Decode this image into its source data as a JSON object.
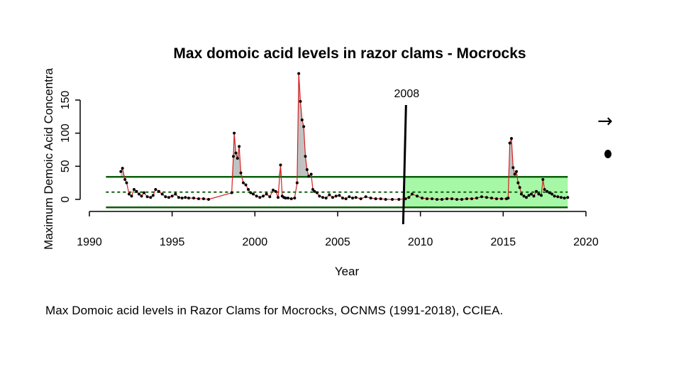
{
  "chart_data": {
    "type": "line",
    "title": "Max domoic acid levels in razor clams - Mocrocks",
    "xlabel": "Year",
    "ylabel": "Maximum Demoic Acid Concentra",
    "xlim": [
      1990,
      2021.5
    ],
    "ylim": [
      -12,
      150
    ],
    "x_ticks": [
      "1990",
      "1995",
      "2000",
      "2005",
      "2010",
      "2015",
      "2020"
    ],
    "y_ticks": [
      "0",
      "50",
      "100",
      "150"
    ],
    "mean": 11,
    "upper_band": 34,
    "lower_band": -12,
    "recent_period_start": 2009.0,
    "recent_period_end": 2018.9,
    "recent_period_color": "#a6f7a6",
    "band_color": "#0b5e0b",
    "line_color": "#d62020",
    "fill_color": "#c0c0c0",
    "vline_label": "2008",
    "series": [
      {
        "x": [
          1991.9,
          1992.0,
          1992.15,
          1992.25,
          1992.4,
          1992.55,
          1992.7,
          1992.85,
          1993.0,
          1993.15,
          1993.3,
          1993.5,
          1993.7,
          1993.85,
          1994.0,
          1994.2,
          1994.4,
          1994.6,
          1994.8,
          1995.0,
          1995.2,
          1995.4,
          1995.6,
          1995.8,
          1996.0,
          1996.3,
          1996.6,
          1996.9,
          1997.2,
          1998.6,
          1998.7,
          1998.75,
          1998.85,
          1998.95,
          1999.05,
          1999.15,
          1999.3,
          1999.45,
          1999.6,
          1999.75,
          1999.9,
          2000.1,
          2000.3,
          2000.5,
          2000.7,
          2000.9,
          2001.1,
          2001.25,
          2001.4,
          2001.55,
          2001.65,
          2001.75,
          2001.85,
          2002.0,
          2002.2,
          2002.4,
          2002.55,
          2002.65,
          2002.75,
          2002.85,
          2002.95,
          2003.05,
          2003.15,
          2003.25,
          2003.4,
          2003.5,
          2003.6,
          2003.75,
          2003.9,
          2004.1,
          2004.3,
          2004.5,
          2004.7,
          2004.9,
          2005.1,
          2005.3,
          2005.5,
          2005.7,
          2005.9,
          2006.1,
          2006.4,
          2006.7,
          2007.0,
          2007.3,
          2007.6,
          2007.9,
          2008.3,
          2008.7,
          2009.1,
          2009.3,
          2009.5,
          2009.8,
          2010.1,
          2010.4,
          2010.7,
          2011.0,
          2011.3,
          2011.6,
          2011.9,
          2012.2,
          2012.5,
          2012.8,
          2013.1,
          2013.4,
          2013.7,
          2014.0,
          2014.3,
          2014.6,
          2014.9,
          2015.2,
          2015.3,
          2015.4,
          2015.5,
          2015.6,
          2015.7,
          2015.8,
          2015.9,
          2016.0,
          2016.1,
          2016.25,
          2016.4,
          2016.55,
          2016.7,
          2016.85,
          2017.0,
          2017.15,
          2017.3,
          2017.4,
          2017.5,
          2017.65,
          2017.8,
          2017.95,
          2018.1,
          2018.3,
          2018.5,
          2018.7,
          2018.9
        ],
        "y": [
          42,
          47,
          30,
          25,
          8,
          5,
          15,
          12,
          8,
          5,
          10,
          4,
          3,
          6,
          15,
          12,
          8,
          4,
          3,
          5,
          8,
          3,
          2,
          3,
          2,
          2,
          1,
          1,
          0,
          10,
          65,
          100,
          70,
          62,
          80,
          40,
          25,
          22,
          15,
          10,
          8,
          5,
          3,
          5,
          8,
          4,
          14,
          12,
          3,
          52,
          5,
          3,
          2,
          2,
          1,
          2,
          25,
          190,
          148,
          120,
          110,
          65,
          45,
          35,
          38,
          15,
          12,
          10,
          5,
          3,
          2,
          7,
          3,
          5,
          6,
          2,
          1,
          4,
          2,
          3,
          1,
          4,
          2,
          1,
          1,
          0,
          0,
          0,
          1,
          3,
          8,
          5,
          2,
          1,
          1,
          0,
          0,
          1,
          1,
          0,
          0,
          1,
          1,
          2,
          4,
          3,
          2,
          1,
          1,
          1,
          2,
          85,
          92,
          48,
          38,
          42,
          25,
          18,
          8,
          5,
          3,
          6,
          8,
          5,
          12,
          8,
          6,
          30,
          15,
          12,
          10,
          8,
          5,
          4,
          3,
          2,
          3
        ]
      }
    ]
  },
  "caption": "Max Domoic acid levels in Razor Clams for Mocrocks, OCNMS (1991-2018), CCIEA.",
  "right_icons": {
    "arrow_glyph": "→"
  }
}
